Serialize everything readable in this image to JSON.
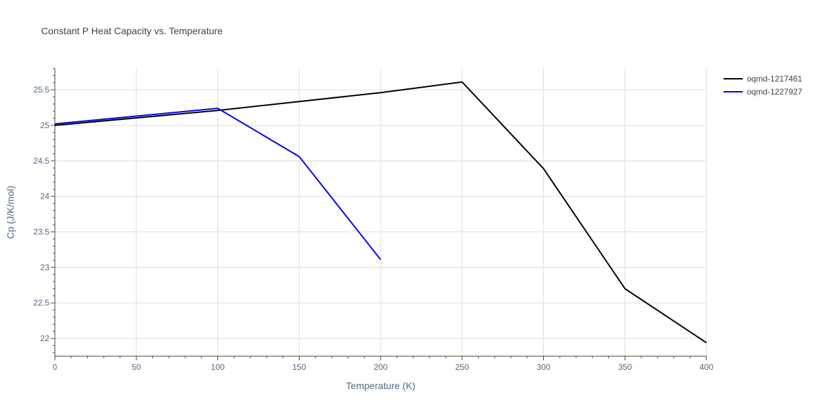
{
  "chart_data": {
    "type": "line",
    "title": "Constant P Heat Capacity vs. Temperature",
    "xlabel": "Temperature (K)",
    "ylabel": "Cp (J/K/mol)",
    "xlim": [
      0,
      400
    ],
    "ylim": [
      21.75,
      25.8
    ],
    "x_ticks": [
      0,
      50,
      100,
      150,
      200,
      250,
      300,
      350,
      400
    ],
    "y_ticks": [
      22,
      22.5,
      23,
      23.5,
      24,
      24.5,
      25,
      25.5
    ],
    "y_tick_labels": [
      "22",
      "22.5",
      "23",
      "23.5",
      "24",
      "24.5",
      "25",
      "25.5"
    ],
    "grid": true,
    "legend_position": "top-right",
    "series": [
      {
        "name": "oqmd-1217461",
        "color": "#000000",
        "x": [
          0,
          100,
          200,
          250,
          300,
          350,
          400
        ],
        "y": [
          25.0,
          25.21,
          25.46,
          25.61,
          24.39,
          22.7,
          21.94
        ]
      },
      {
        "name": "oqmd-1227927",
        "color": "#0000ee",
        "x": [
          0,
          50,
          100,
          150,
          200
        ],
        "y": [
          25.02,
          25.13,
          25.24,
          24.56,
          23.11
        ]
      }
    ]
  }
}
